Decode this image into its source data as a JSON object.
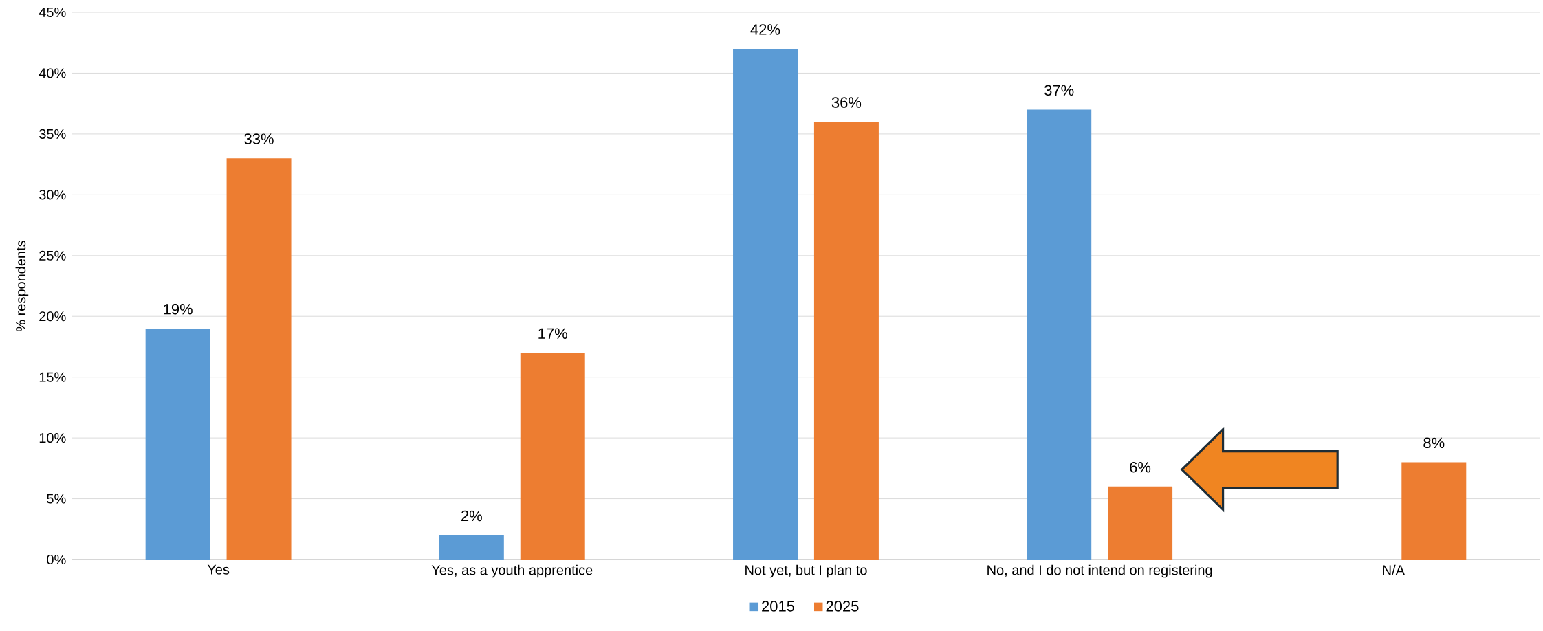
{
  "chart_data": {
    "type": "bar",
    "ylabel": "% respondents",
    "categories": [
      "Yes",
      "Yes, as a youth apprentice",
      "Not yet, but I plan to",
      "No, and I do not intend on registering",
      "N/A"
    ],
    "series": [
      {
        "name": "2015",
        "color": "#5b9bd5",
        "values": [
          19,
          2,
          42,
          37,
          null
        ],
        "value_labels": [
          "19%",
          "2%",
          "42%",
          "37%",
          null
        ]
      },
      {
        "name": "2025",
        "color": "#ed7d31",
        "values": [
          33,
          17,
          36,
          6,
          8
        ],
        "value_labels": [
          "33%",
          "17%",
          "36%",
          "6%",
          "8%"
        ]
      }
    ],
    "ylim": [
      0,
      45
    ],
    "yticks": [
      {
        "value": 0,
        "label": "0%"
      },
      {
        "value": 5,
        "label": "5%"
      },
      {
        "value": 10,
        "label": "10%"
      },
      {
        "value": 15,
        "label": "15%"
      },
      {
        "value": 20,
        "label": "20%"
      },
      {
        "value": 25,
        "label": "25%"
      },
      {
        "value": 30,
        "label": "30%"
      },
      {
        "value": 35,
        "label": "35%"
      },
      {
        "value": 40,
        "label": "40%"
      },
      {
        "value": 45,
        "label": "45%"
      }
    ],
    "grid": "y",
    "legend": "bottom"
  }
}
